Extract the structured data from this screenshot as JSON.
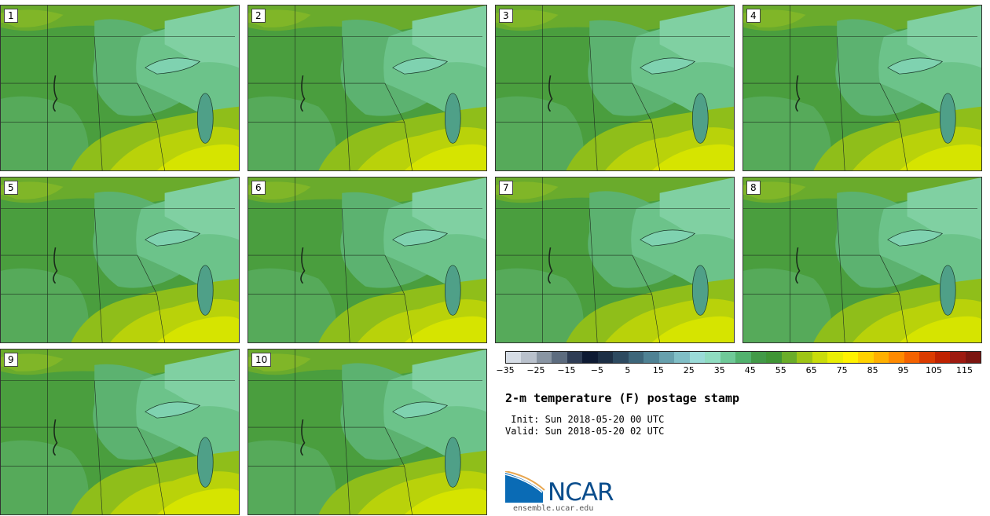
{
  "panels": [
    {
      "label": "1"
    },
    {
      "label": "2"
    },
    {
      "label": "3"
    },
    {
      "label": "4"
    },
    {
      "label": "5"
    },
    {
      "label": "6"
    },
    {
      "label": "7"
    },
    {
      "label": "8"
    },
    {
      "label": "9"
    },
    {
      "label": "10"
    }
  ],
  "colorbar": {
    "colors": [
      "#d6dde6",
      "#b9c1cc",
      "#8995a3",
      "#5d6c7f",
      "#2f3d55",
      "#0e1a33",
      "#1d2f45",
      "#2d4a60",
      "#3d667a",
      "#4f8294",
      "#67a0ad",
      "#80bec6",
      "#9adbd8",
      "#8fdcc0",
      "#6fc998",
      "#52b26e",
      "#429a48",
      "#3f9535",
      "#6aad29",
      "#9ec516",
      "#c9dc0b",
      "#e9ee04",
      "#fff200",
      "#ffd200",
      "#ffb000",
      "#ff8a00",
      "#f46200",
      "#db3b00",
      "#bf2200",
      "#9e1a10",
      "#7c1510"
    ],
    "tick_labels": [
      "−35",
      "−25",
      "−15",
      "−5",
      "5",
      "15",
      "25",
      "35",
      "45",
      "55",
      "65",
      "75",
      "85",
      "95",
      "105",
      "115"
    ]
  },
  "title": "2-m temperature (F) postage stamp",
  "init": " Init: Sun 2018-05-20 00 UTC",
  "valid": "Valid: Sun 2018-05-20 02 UTC",
  "logo": {
    "text": "NCAR",
    "site": "ensemble.ucar.edu"
  }
}
